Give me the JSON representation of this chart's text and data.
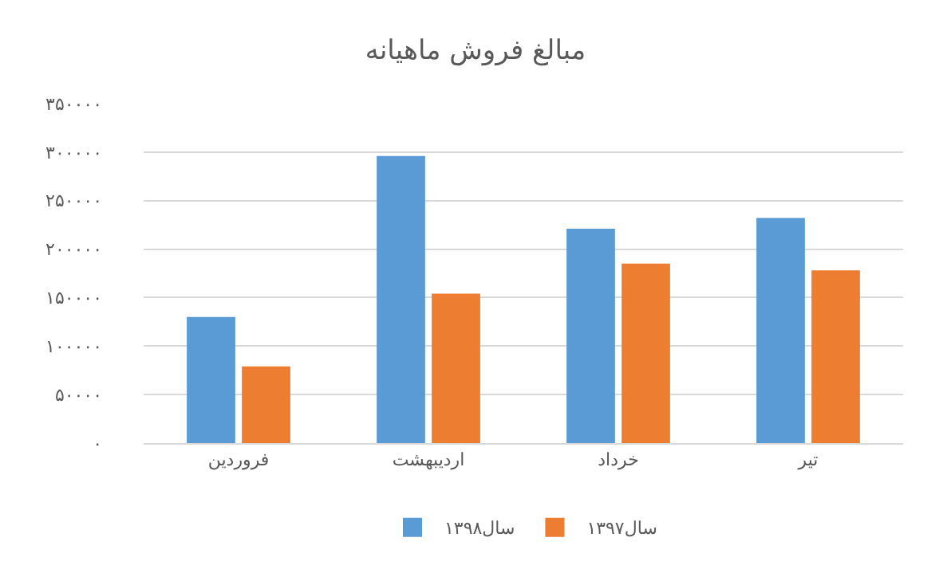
{
  "chart_data": {
    "type": "bar",
    "title": "مبالغ فروش ماهیانه",
    "categories": [
      "فروردین",
      "اردیبهشت",
      "خرداد",
      "تیر"
    ],
    "series": [
      {
        "name": "سال۱۳۹۸",
        "color": "#5b9bd5",
        "values": [
          130000,
          296000,
          221000,
          232000
        ]
      },
      {
        "name": "سال۱۳۹۷",
        "color": "#ed7d31",
        "values": [
          79000,
          154000,
          185000,
          178000
        ]
      }
    ],
    "ylim": [
      0,
      350000
    ],
    "yticks": [
      {
        "value": 0,
        "label": "۰"
      },
      {
        "value": 50000,
        "label": "۵۰۰۰۰"
      },
      {
        "value": 100000,
        "label": "۱۰۰۰۰۰"
      },
      {
        "value": 150000,
        "label": "۱۵۰۰۰۰"
      },
      {
        "value": 200000,
        "label": "۲۰۰۰۰۰"
      },
      {
        "value": 250000,
        "label": "۲۵۰۰۰۰"
      },
      {
        "value": 300000,
        "label": "۳۰۰۰۰۰"
      },
      {
        "value": 350000,
        "label": "۳۵۰۰۰۰"
      }
    ],
    "grid": "y",
    "legend": "bottom"
  }
}
